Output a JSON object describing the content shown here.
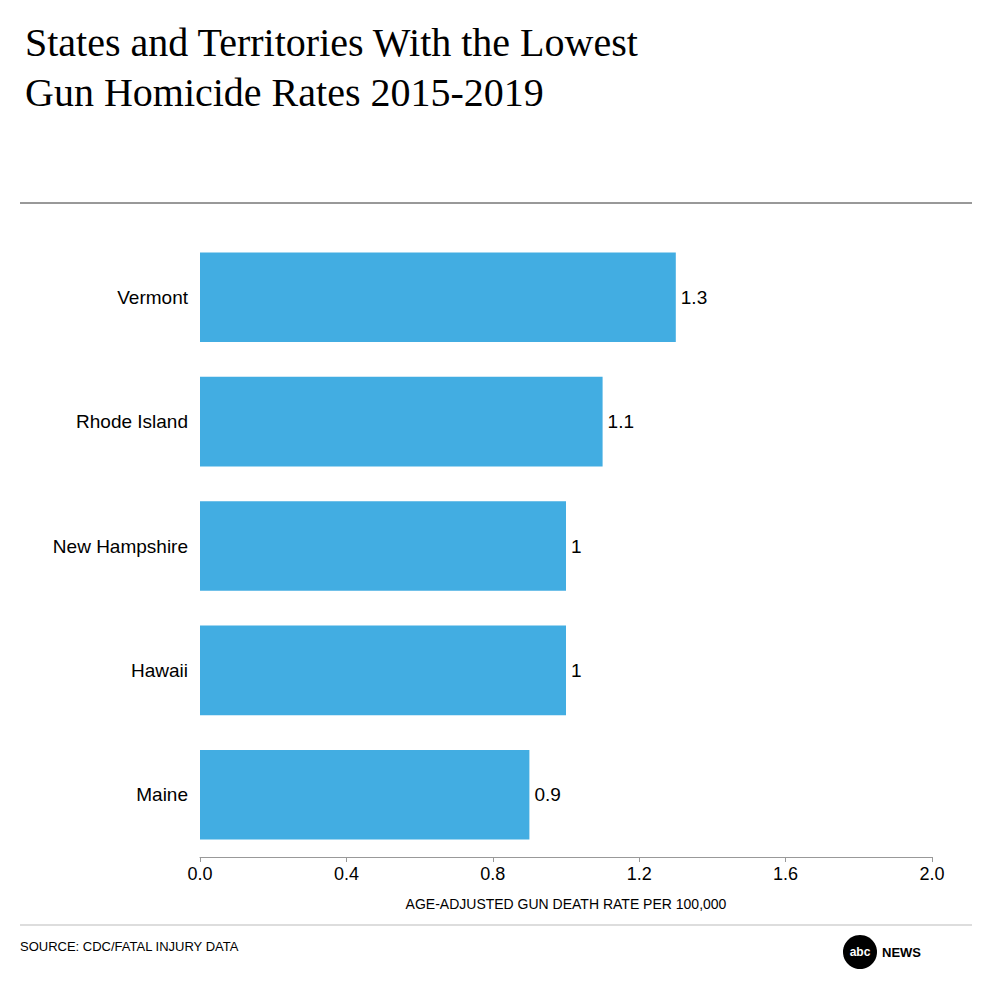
{
  "chart_data": {
    "type": "bar",
    "title": "States and Territories With the Lowest\nGun Homicide Rates 2015-2019",
    "orientation": "horizontal",
    "categories": [
      "Vermont",
      "Rhode Island",
      "New Hampshire",
      "Hawaii",
      "Maine"
    ],
    "values": [
      1.3,
      1.1,
      1.0,
      1.0,
      0.9
    ],
    "color": "#42ade2",
    "data_labels": true,
    "xlim": [
      0,
      2.0
    ],
    "xticks": [
      {
        "value": 0,
        "label": "0.0"
      },
      0.4,
      0.8,
      1.2,
      1.6,
      {
        "value": 2.0,
        "label": "2.0"
      }
    ],
    "xlabel": "AGE-ADJUSTED GUN DEATH RATE PER 100,000",
    "annotations": [
      "SOURCE: CDC/FATAL INJURY DATA",
      "abc",
      "NEWS"
    ],
    "grid": false
  }
}
